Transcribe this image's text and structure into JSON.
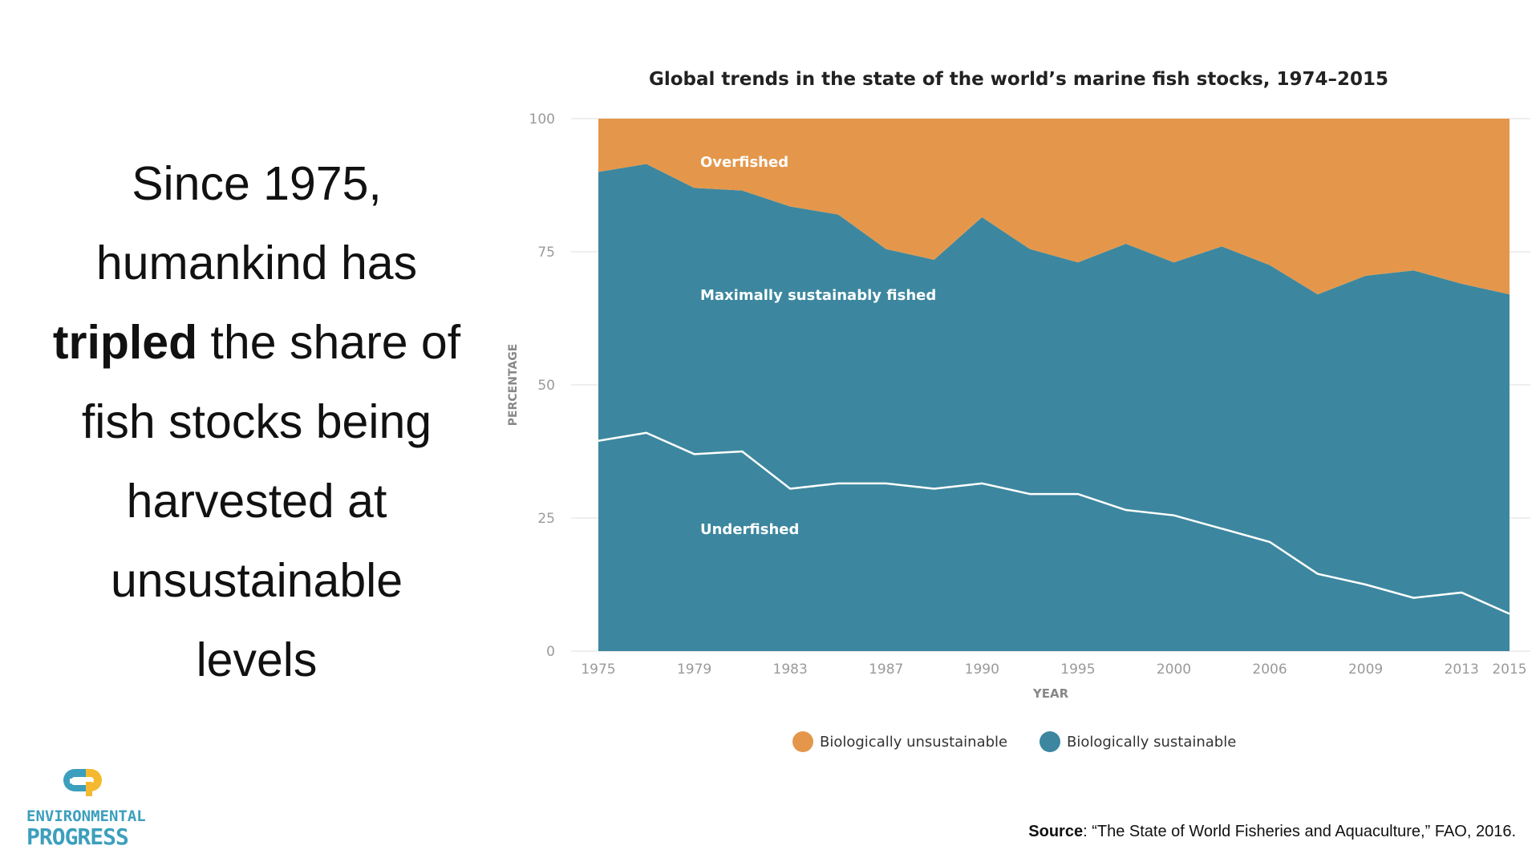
{
  "headline": {
    "line1": "Since 1975,",
    "line2": "humankind has",
    "emphasis": "tripled",
    "line3_rest": " the share of",
    "line4": "fish stocks being",
    "line5": "harvested at",
    "line6": "unsustainable",
    "line7": "levels"
  },
  "chart_data": {
    "type": "area",
    "title": "Global trends in the state of the world’s marine fish stocks, 1974–2015",
    "xlabel": "YEAR",
    "ylabel": "PERCENTAGE",
    "ylim": [
      0,
      100
    ],
    "yticks": [
      "100",
      "75",
      "50",
      "25",
      "0"
    ],
    "xticks": [
      "1975",
      "1979",
      "1983",
      "1987",
      "1990",
      "1995",
      "2000",
      "2006",
      "2009",
      "2013",
      "2015"
    ],
    "x_index_positions": [
      0,
      2,
      4,
      6,
      8,
      10,
      12,
      14,
      16,
      18,
      19
    ],
    "x": [
      1975,
      1977,
      1979,
      1981,
      1983,
      1985,
      1987,
      1989,
      1990,
      1992,
      1995,
      1997,
      2000,
      2002,
      2006,
      2008,
      2009,
      2011,
      2013,
      2015
    ],
    "series": [
      {
        "name": "Overfished",
        "category": "Biologically unsustainable",
        "boundary_top": 100,
        "boundary_bottom": [
          90,
          91.5,
          87,
          86.5,
          83.5,
          82,
          75.5,
          73.5,
          81.5,
          75.5,
          73,
          76.5,
          73,
          76,
          72.5,
          67,
          70.5,
          71.5,
          69,
          67
        ]
      },
      {
        "name": "Maximally sustainably fished",
        "category": "Biologically sustainable",
        "values_cumulative_top": [
          90,
          91.5,
          87,
          86.5,
          83.5,
          82,
          75.5,
          73.5,
          81.5,
          75.5,
          73,
          76.5,
          73,
          76,
          72.5,
          67,
          70.5,
          71.5,
          69,
          67
        ]
      },
      {
        "name": "Underfished",
        "category": "Biologically sustainable",
        "values": [
          39.5,
          41,
          37,
          37.5,
          30.5,
          31.5,
          31.5,
          30.5,
          31.5,
          29.5,
          29.5,
          26.5,
          25.5,
          23,
          20.5,
          14.5,
          12.5,
          10,
          11,
          7
        ]
      }
    ],
    "area_labels": [
      "Overfished",
      "Maximally sustainably fished",
      "Underfished"
    ],
    "legend": [
      {
        "label": "Biologically unsustainable",
        "color": "#e4974b"
      },
      {
        "label": "Biologically sustainable",
        "color": "#3c879f"
      }
    ],
    "legend_position": "bottom",
    "grid": true,
    "colors": {
      "unsustainable": "#e4974b",
      "sustainable": "#3c879f",
      "divider": "#ffffff"
    }
  },
  "logo": {
    "line1": "ENVIRONMENTAL",
    "line2": "PROGRESS",
    "color": "#3c9fbd",
    "mark_color": "#f4b92f"
  },
  "source": {
    "label": "Source",
    "text": ": “The State of World Fisheries and Aquaculture,” FAO, 2016."
  }
}
